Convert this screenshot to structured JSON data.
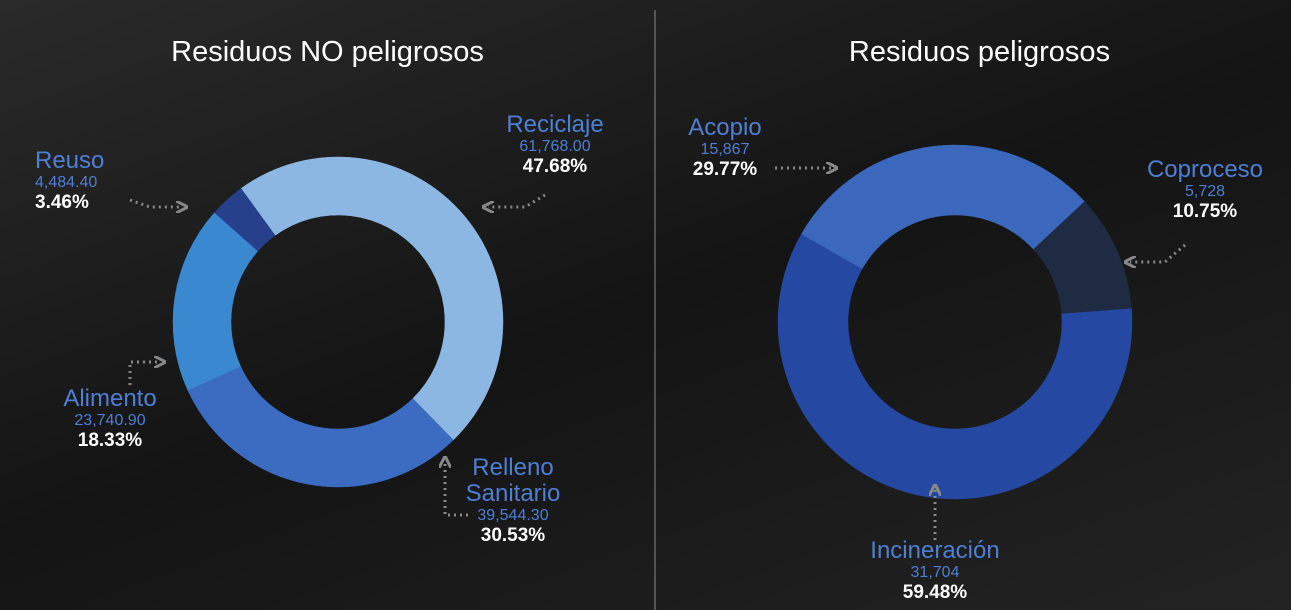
{
  "chart_data": [
    {
      "type": "pie",
      "title": "Residuos NO peligrosos",
      "categories": [
        "Reciclaje",
        "Relleno Sanitario",
        "Alimento",
        "Reuso"
      ],
      "values": [
        61768.0,
        39544.3,
        23740.9,
        4484.4
      ],
      "value_labels": [
        "61,768.00",
        "39,544.30",
        "23,740.90",
        "4,484.40"
      ],
      "percent_labels": [
        "47.68%",
        "30.53%",
        "18.33%",
        "3.46%"
      ],
      "colors": [
        "#8db7e3",
        "#3b6cc1",
        "#3a89d0",
        "#26408c"
      ]
    },
    {
      "type": "pie",
      "title": "Residuos peligrosos",
      "categories": [
        "Coproceso",
        "Incineración",
        "Acopio"
      ],
      "values": [
        5728,
        31704,
        15867
      ],
      "value_labels": [
        "5,728",
        "31,704",
        "15,867"
      ],
      "percent_labels": [
        "10.75%",
        "59.48%",
        "29.77%"
      ],
      "colors": [
        "#1f2b42",
        "#2549a2",
        "#3b67bd"
      ]
    }
  ]
}
